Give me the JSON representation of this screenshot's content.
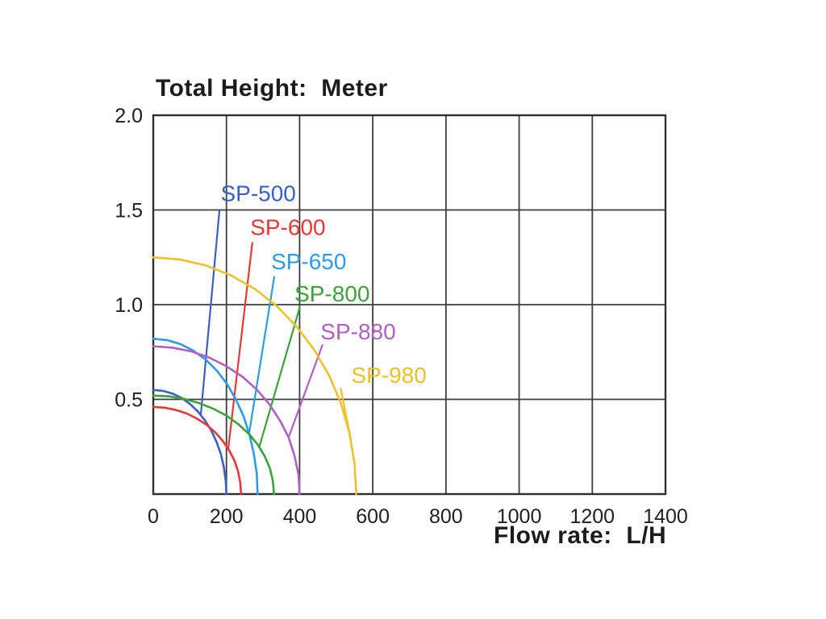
{
  "page": {
    "title": "Total Height:  Meter",
    "x_axis_label": "Flow rate:  L/H"
  },
  "chart_data": {
    "type": "line",
    "title": "Total Height: Meter",
    "xlabel": "Flow rate: L/H",
    "ylabel": "Total Height (Meter)",
    "xlim": [
      0,
      1400
    ],
    "ylim": [
      0,
      2.0
    ],
    "grid": true,
    "legend_position": "inline-labels-with-leader-lines",
    "axis_color": "#2f2f2f",
    "grid_color": "#3d3d3d",
    "text_color": "#1f1f1f",
    "x_ticks": [
      0,
      200,
      400,
      600,
      800,
      1000,
      1200,
      1400
    ],
    "x_tick_labels": [
      "0",
      "200",
      "400",
      "600",
      "800",
      "1000",
      "1200",
      "1400"
    ],
    "y_ticks": [
      0.5,
      1.0,
      1.5,
      2.0
    ],
    "y_tick_labels": [
      "0.5",
      "1.0",
      "1.5",
      "2.0"
    ],
    "series": [
      {
        "name": "SP-500",
        "color": "#3a5fc8",
        "max_head_m": 0.55,
        "max_flow_lh": 200,
        "points": [
          [
            0,
            0.55
          ],
          [
            26,
            0.545
          ],
          [
            52,
            0.531
          ],
          [
            77,
            0.508
          ],
          [
            100,
            0.476
          ],
          [
            122,
            0.436
          ],
          [
            141,
            0.389
          ],
          [
            159,
            0.335
          ],
          [
            173,
            0.275
          ],
          [
            185,
            0.21
          ],
          [
            193,
            0.142
          ],
          [
            198,
            0.072
          ],
          [
            200,
            0
          ]
        ],
        "label_pos": [
          287,
          1.59
        ],
        "leader": [
          [
            181,
            1.5
          ],
          [
            130,
            0.42
          ]
        ]
      },
      {
        "name": "SP-600",
        "color": "#e53935",
        "max_head_m": 0.46,
        "max_flow_lh": 240,
        "points": [
          [
            0,
            0.46
          ],
          [
            31,
            0.456
          ],
          [
            62,
            0.444
          ],
          [
            92,
            0.425
          ],
          [
            120,
            0.398
          ],
          [
            146,
            0.365
          ],
          [
            170,
            0.325
          ],
          [
            190,
            0.28
          ],
          [
            208,
            0.23
          ],
          [
            222,
            0.176
          ],
          [
            232,
            0.119
          ],
          [
            238,
            0.06
          ],
          [
            240,
            0
          ]
        ],
        "label_pos": [
          368,
          1.41
        ],
        "leader": [
          [
            271,
            1.33
          ],
          [
            205,
            0.24
          ]
        ]
      },
      {
        "name": "SP-650",
        "color": "#2e9be6",
        "max_head_m": 0.82,
        "max_flow_lh": 285,
        "points": [
          [
            0,
            0.82
          ],
          [
            37,
            0.813
          ],
          [
            74,
            0.792
          ],
          [
            109,
            0.758
          ],
          [
            143,
            0.71
          ],
          [
            174,
            0.651
          ],
          [
            202,
            0.58
          ],
          [
            226,
            0.499
          ],
          [
            247,
            0.41
          ],
          [
            263,
            0.314
          ],
          [
            275,
            0.212
          ],
          [
            283,
            0.107
          ],
          [
            285,
            0
          ]
        ],
        "label_pos": [
          425,
          1.23
        ],
        "leader": [
          [
            331,
            1.15
          ],
          [
            262,
            0.32
          ]
        ]
      },
      {
        "name": "SP-800",
        "color": "#3aa33a",
        "max_head_m": 0.52,
        "max_flow_lh": 330,
        "points": [
          [
            0,
            0.52
          ],
          [
            43,
            0.516
          ],
          [
            85,
            0.502
          ],
          [
            126,
            0.48
          ],
          [
            165,
            0.45
          ],
          [
            201,
            0.413
          ],
          [
            233,
            0.368
          ],
          [
            262,
            0.317
          ],
          [
            286,
            0.26
          ],
          [
            305,
            0.199
          ],
          [
            319,
            0.135
          ],
          [
            327,
            0.068
          ],
          [
            330,
            0
          ]
        ],
        "label_pos": [
          489,
          1.06
        ],
        "leader": [
          [
            401,
            0.99
          ],
          [
            290,
            0.25
          ]
        ]
      },
      {
        "name": "SP-880",
        "color": "#b060c5",
        "max_head_m": 0.78,
        "max_flow_lh": 400,
        "points": [
          [
            0,
            0.78
          ],
          [
            52,
            0.773
          ],
          [
            104,
            0.753
          ],
          [
            153,
            0.721
          ],
          [
            200,
            0.675
          ],
          [
            244,
            0.619
          ],
          [
            283,
            0.552
          ],
          [
            317,
            0.475
          ],
          [
            346,
            0.39
          ],
          [
            370,
            0.299
          ],
          [
            386,
            0.202
          ],
          [
            397,
            0.102
          ],
          [
            400,
            0
          ]
        ],
        "label_pos": [
          560,
          0.86
        ],
        "leader": [
          [
            463,
            0.79
          ],
          [
            370,
            0.3
          ]
        ]
      },
      {
        "name": "SP-980",
        "color": "#eec02a",
        "max_head_m": 1.25,
        "max_flow_lh": 555,
        "points": [
          [
            0,
            1.25
          ],
          [
            72,
            1.239
          ],
          [
            144,
            1.207
          ],
          [
            212,
            1.155
          ],
          [
            278,
            1.083
          ],
          [
            338,
            0.992
          ],
          [
            392,
            0.884
          ],
          [
            440,
            0.761
          ],
          [
            481,
            0.625
          ],
          [
            513,
            0.478
          ],
          [
            536,
            0.324
          ],
          [
            550,
            0.163
          ],
          [
            555,
            0
          ]
        ],
        "label_pos": [
          644,
          0.63
        ],
        "leader": [
          [
            512,
            0.56
          ],
          [
            540,
            0.29
          ]
        ]
      }
    ]
  }
}
